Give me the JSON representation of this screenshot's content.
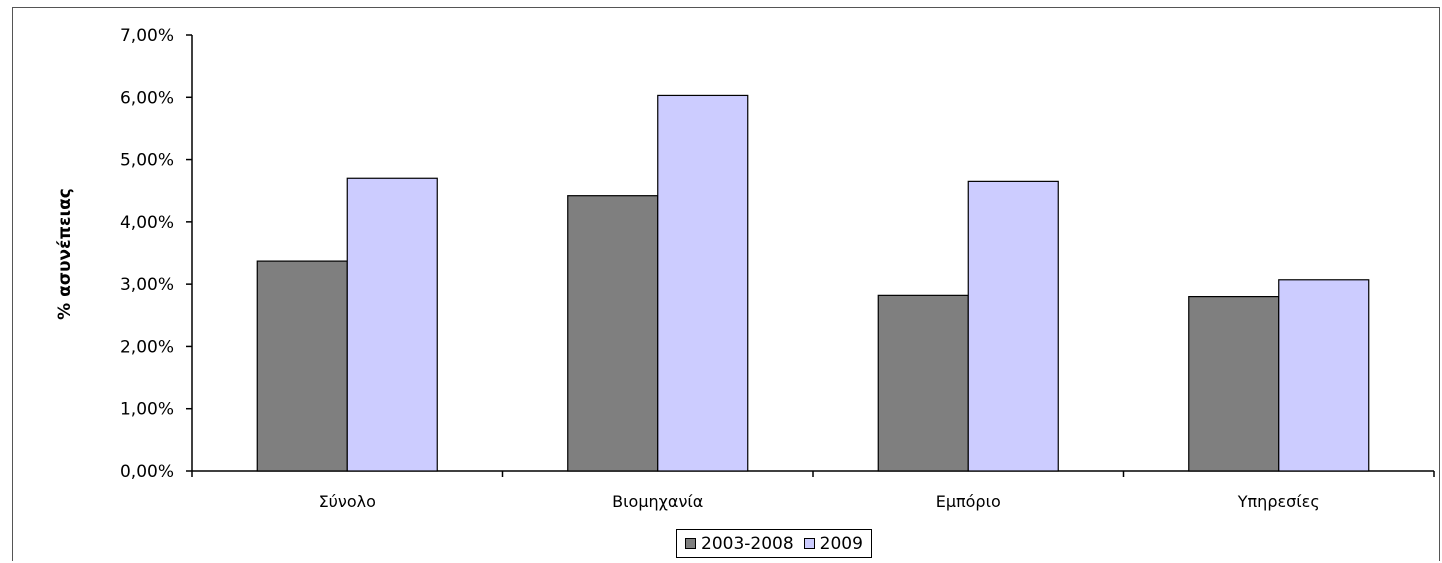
{
  "chart_data": {
    "type": "bar",
    "categories": [
      "Σύνολο",
      "Βιομηχανία",
      "Εμπόριο",
      "Υπηρεσίες"
    ],
    "series": [
      {
        "name": "2003-2008",
        "values": [
          3.37,
          4.42,
          2.82,
          2.8
        ],
        "color": "#7f7f7f"
      },
      {
        "name": "2009",
        "values": [
          4.7,
          6.03,
          4.65,
          3.07
        ],
        "color": "#ccccff"
      }
    ],
    "ylabel": "% ασυνέπειας",
    "ylim": [
      0,
      7
    ],
    "yticks": [
      "0,00%",
      "1,00%",
      "2,00%",
      "3,00%",
      "4,00%",
      "5,00%",
      "6,00%",
      "7,00%"
    ],
    "grid": false,
    "legend": "bottom"
  }
}
